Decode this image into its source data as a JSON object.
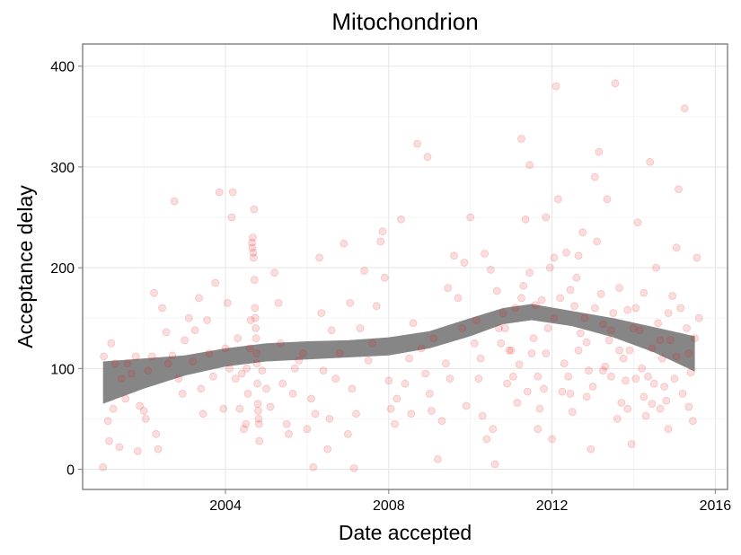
{
  "chart_data": {
    "type": "scatter",
    "title": "Mitochondrion",
    "xlabel": "Date accepted",
    "ylabel": "Acceptance delay",
    "xlim": [
      2000.5,
      2016.3
    ],
    "ylim": [
      -20,
      422
    ],
    "x_ticks": [
      {
        "value": 2004,
        "label": "2004"
      },
      {
        "value": 2008,
        "label": "2008"
      },
      {
        "value": 2012,
        "label": "2012"
      },
      {
        "value": 2016,
        "label": "2016"
      }
    ],
    "y_ticks": [
      {
        "value": 0,
        "label": "0"
      },
      {
        "value": 100,
        "label": "100"
      },
      {
        "value": 200,
        "label": "200"
      },
      {
        "value": 300,
        "label": "300"
      },
      {
        "value": 400,
        "label": "400"
      }
    ],
    "grid": true,
    "point_color": "#e31a1c",
    "point_alpha": 0.15,
    "smooth_color": "#808080",
    "smooth": [
      {
        "x": 2001.0,
        "lo": 65,
        "hi": 107
      },
      {
        "x": 2002.0,
        "lo": 80,
        "hi": 110
      },
      {
        "x": 2003.0,
        "lo": 93,
        "hi": 113
      },
      {
        "x": 2004.0,
        "lo": 102,
        "hi": 120
      },
      {
        "x": 2005.0,
        "lo": 107,
        "hi": 125
      },
      {
        "x": 2006.0,
        "lo": 109,
        "hi": 127
      },
      {
        "x": 2007.0,
        "lo": 111,
        "hi": 128
      },
      {
        "x": 2008.0,
        "lo": 113,
        "hi": 131
      },
      {
        "x": 2009.0,
        "lo": 120,
        "hi": 137
      },
      {
        "x": 2010.0,
        "lo": 132,
        "hi": 150
      },
      {
        "x": 2010.8,
        "lo": 144,
        "hi": 160
      },
      {
        "x": 2011.5,
        "lo": 148,
        "hi": 164
      },
      {
        "x": 2012.5,
        "lo": 142,
        "hi": 157
      },
      {
        "x": 2013.5,
        "lo": 131,
        "hi": 150
      },
      {
        "x": 2014.5,
        "lo": 116,
        "hi": 141
      },
      {
        "x": 2015.5,
        "lo": 97,
        "hi": 132
      }
    ],
    "points": [
      [
        2001.0,
        2
      ],
      [
        2001.02,
        112
      ],
      [
        2001.12,
        48
      ],
      [
        2001.15,
        28
      ],
      [
        2001.2,
        125
      ],
      [
        2001.25,
        60
      ],
      [
        2001.3,
        105
      ],
      [
        2001.4,
        22
      ],
      [
        2001.45,
        90
      ],
      [
        2001.55,
        70
      ],
      [
        2001.6,
        105
      ],
      [
        2001.7,
        95
      ],
      [
        2001.8,
        112
      ],
      [
        2001.85,
        18
      ],
      [
        2001.9,
        63
      ],
      [
        2002.0,
        58
      ],
      [
        2002.05,
        50
      ],
      [
        2002.1,
        98
      ],
      [
        2002.2,
        112
      ],
      [
        2002.25,
        175
      ],
      [
        2002.3,
        35
      ],
      [
        2002.35,
        20
      ],
      [
        2002.45,
        160
      ],
      [
        2002.55,
        136
      ],
      [
        2002.6,
        105
      ],
      [
        2002.7,
        113
      ],
      [
        2002.75,
        266
      ],
      [
        2002.85,
        90
      ],
      [
        2002.95,
        75
      ],
      [
        2003.0,
        128
      ],
      [
        2003.1,
        150
      ],
      [
        2003.2,
        107
      ],
      [
        2003.25,
        138
      ],
      [
        2003.35,
        170
      ],
      [
        2003.4,
        80
      ],
      [
        2003.45,
        55
      ],
      [
        2003.55,
        148
      ],
      [
        2003.6,
        115
      ],
      [
        2003.7,
        92
      ],
      [
        2003.75,
        185
      ],
      [
        2003.85,
        275
      ],
      [
        2003.95,
        60
      ],
      [
        2004.0,
        120
      ],
      [
        2004.05,
        165
      ],
      [
        2004.1,
        100
      ],
      [
        2004.15,
        250
      ],
      [
        2004.18,
        275
      ],
      [
        2004.25,
        90
      ],
      [
        2004.3,
        130
      ],
      [
        2004.35,
        60
      ],
      [
        2004.4,
        95
      ],
      [
        2004.45,
        40
      ],
      [
        2004.5,
        45
      ],
      [
        2004.52,
        100
      ],
      [
        2004.55,
        75
      ],
      [
        2004.6,
        120
      ],
      [
        2004.62,
        148
      ],
      [
        2004.65,
        225
      ],
      [
        2004.66,
        220
      ],
      [
        2004.67,
        230
      ],
      [
        2004.68,
        215
      ],
      [
        2004.69,
        210
      ],
      [
        2004.7,
        258
      ],
      [
        2004.71,
        188
      ],
      [
        2004.72,
        160
      ],
      [
        2004.73,
        150
      ],
      [
        2004.74,
        140
      ],
      [
        2004.75,
        130
      ],
      [
        2004.76,
        115
      ],
      [
        2004.77,
        105
      ],
      [
        2004.78,
        85
      ],
      [
        2004.79,
        65
      ],
      [
        2004.8,
        58
      ],
      [
        2004.81,
        50
      ],
      [
        2004.82,
        45
      ],
      [
        2004.83,
        28
      ],
      [
        2004.9,
        98
      ],
      [
        2005.0,
        80
      ],
      [
        2005.1,
        62
      ],
      [
        2005.2,
        195
      ],
      [
        2005.3,
        165
      ],
      [
        2005.35,
        125
      ],
      [
        2005.4,
        85
      ],
      [
        2005.5,
        45
      ],
      [
        2005.55,
        35
      ],
      [
        2005.65,
        75
      ],
      [
        2005.7,
        100
      ],
      [
        2005.8,
        108
      ],
      [
        2005.9,
        115
      ],
      [
        2006.0,
        40
      ],
      [
        2006.1,
        70
      ],
      [
        2006.15,
        2
      ],
      [
        2006.2,
        55
      ],
      [
        2006.3,
        210
      ],
      [
        2006.35,
        155
      ],
      [
        2006.4,
        98
      ],
      [
        2006.5,
        20
      ],
      [
        2006.55,
        50
      ],
      [
        2006.6,
        138
      ],
      [
        2006.7,
        90
      ],
      [
        2006.8,
        115
      ],
      [
        2006.9,
        224
      ],
      [
        2007.0,
        35
      ],
      [
        2007.05,
        165
      ],
      [
        2007.1,
        80
      ],
      [
        2007.15,
        1
      ],
      [
        2007.2,
        55
      ],
      [
        2007.3,
        140
      ],
      [
        2007.4,
        197
      ],
      [
        2007.5,
        108
      ],
      [
        2007.6,
        125
      ],
      [
        2007.7,
        162
      ],
      [
        2007.8,
        226
      ],
      [
        2007.85,
        236
      ],
      [
        2007.9,
        190
      ],
      [
        2008.0,
        88
      ],
      [
        2008.05,
        60
      ],
      [
        2008.15,
        45
      ],
      [
        2008.2,
        70
      ],
      [
        2008.3,
        248
      ],
      [
        2008.4,
        85
      ],
      [
        2008.5,
        110
      ],
      [
        2008.6,
        145
      ],
      [
        2008.7,
        323
      ],
      [
        2008.8,
        120
      ],
      [
        2008.9,
        95
      ],
      [
        2009.0,
        75
      ],
      [
        2009.05,
        58
      ],
      [
        2009.1,
        130
      ],
      [
        2009.2,
        10
      ],
      [
        2009.3,
        48
      ],
      [
        2009.4,
        105
      ],
      [
        2009.5,
        90
      ],
      [
        2009.6,
        212
      ],
      [
        2009.7,
        170
      ],
      [
        2009.8,
        140
      ],
      [
        2009.9,
        63
      ],
      [
        2010.0,
        250
      ],
      [
        2010.1,
        125
      ],
      [
        2010.15,
        148
      ],
      [
        2010.2,
        90
      ],
      [
        2010.25,
        110
      ],
      [
        2010.3,
        53
      ],
      [
        2010.4,
        30
      ],
      [
        2010.5,
        198
      ],
      [
        2010.6,
        5
      ],
      [
        2010.7,
        140
      ],
      [
        2010.8,
        155
      ],
      [
        2010.9,
        85
      ],
      [
        2011.0,
        118
      ],
      [
        2011.1,
        160
      ],
      [
        2011.2,
        104
      ],
      [
        2011.25,
        328
      ],
      [
        2011.3,
        182
      ],
      [
        2011.4,
        77
      ],
      [
        2011.5,
        115
      ],
      [
        2011.6,
        163
      ],
      [
        2011.7,
        60
      ],
      [
        2011.8,
        80
      ],
      [
        2011.9,
        140
      ],
      [
        2012.0,
        30
      ],
      [
        2012.05,
        210
      ],
      [
        2012.1,
        380
      ],
      [
        2012.15,
        268
      ],
      [
        2012.2,
        170
      ],
      [
        2012.3,
        105
      ],
      [
        2012.4,
        92
      ],
      [
        2012.45,
        75
      ],
      [
        2012.5,
        57
      ],
      [
        2012.6,
        190
      ],
      [
        2012.7,
        135
      ],
      [
        2012.8,
        150
      ],
      [
        2012.9,
        98
      ],
      [
        2013.0,
        82
      ],
      [
        2013.05,
        290
      ],
      [
        2013.1,
        226
      ],
      [
        2013.15,
        315
      ],
      [
        2013.2,
        174
      ],
      [
        2013.3,
        102
      ],
      [
        2013.4,
        128
      ],
      [
        2013.5,
        155
      ],
      [
        2013.55,
        383
      ],
      [
        2013.6,
        50
      ],
      [
        2013.7,
        66
      ],
      [
        2013.8,
        88
      ],
      [
        2013.9,
        118
      ],
      [
        2014.0,
        140
      ],
      [
        2014.05,
        160
      ],
      [
        2014.1,
        245
      ],
      [
        2014.2,
        100
      ],
      [
        2014.25,
        72
      ],
      [
        2014.3,
        53
      ],
      [
        2014.4,
        305
      ],
      [
        2014.45,
        120
      ],
      [
        2014.5,
        85
      ],
      [
        2014.6,
        145
      ],
      [
        2014.7,
        110
      ],
      [
        2014.8,
        68
      ],
      [
        2014.9,
        128
      ],
      [
        2015.0,
        90
      ],
      [
        2015.05,
        220
      ],
      [
        2015.1,
        278
      ],
      [
        2015.15,
        160
      ],
      [
        2015.2,
        75
      ],
      [
        2015.25,
        358
      ],
      [
        2015.3,
        140
      ],
      [
        2015.35,
        115
      ],
      [
        2015.4,
        96
      ],
      [
        2015.45,
        48
      ],
      [
        2015.5,
        130
      ],
      [
        2015.55,
        210
      ],
      [
        2015.6,
        150
      ],
      [
        2008.95,
        310
      ],
      [
        2008.55,
        55
      ],
      [
        2009.45,
        180
      ],
      [
        2009.85,
        205
      ],
      [
        2010.35,
        214
      ],
      [
        2010.65,
        177
      ],
      [
        2010.85,
        140
      ],
      [
        2011.05,
        92
      ],
      [
        2011.15,
        66
      ],
      [
        2011.35,
        248
      ],
      [
        2011.45,
        302
      ],
      [
        2011.55,
        130
      ],
      [
        2011.65,
        40
      ],
      [
        2011.75,
        168
      ],
      [
        2011.85,
        250
      ],
      [
        2011.95,
        200
      ],
      [
        2012.35,
        215
      ],
      [
        2012.55,
        162
      ],
      [
        2012.65,
        118
      ],
      [
        2012.75,
        235
      ],
      [
        2012.85,
        72
      ],
      [
        2012.95,
        20
      ],
      [
        2013.25,
        144
      ],
      [
        2013.35,
        268
      ],
      [
        2013.45,
        92
      ],
      [
        2013.65,
        180
      ],
      [
        2013.75,
        110
      ],
      [
        2013.85,
        60
      ],
      [
        2013.95,
        25
      ],
      [
        2014.15,
        138
      ],
      [
        2014.35,
        92
      ],
      [
        2014.55,
        200
      ],
      [
        2014.65,
        60
      ],
      [
        2014.75,
        82
      ],
      [
        2014.85,
        40
      ],
      [
        2014.95,
        172
      ],
      [
        2015.35,
        62
      ],
      [
        2010.55,
        40
      ],
      [
        2010.75,
        125
      ],
      [
        2010.95,
        118
      ],
      [
        2011.25,
        170
      ],
      [
        2011.45,
        195
      ],
      [
        2011.65,
        92
      ],
      [
        2011.85,
        115
      ],
      [
        2012.05,
        150
      ],
      [
        2012.25,
        77
      ],
      [
        2012.45,
        178
      ],
      [
        2012.65,
        212
      ],
      [
        2012.85,
        126
      ],
      [
        2013.05,
        160
      ],
      [
        2013.25,
        98
      ],
      [
        2013.45,
        138
      ],
      [
        2013.65,
        118
      ],
      [
        2013.85,
        158
      ],
      [
        2014.05,
        90
      ],
      [
        2014.25,
        175
      ],
      [
        2014.45,
        65
      ],
      [
        2014.65,
        128
      ],
      [
        2014.85,
        155
      ],
      [
        2015.05,
        112
      ]
    ]
  }
}
